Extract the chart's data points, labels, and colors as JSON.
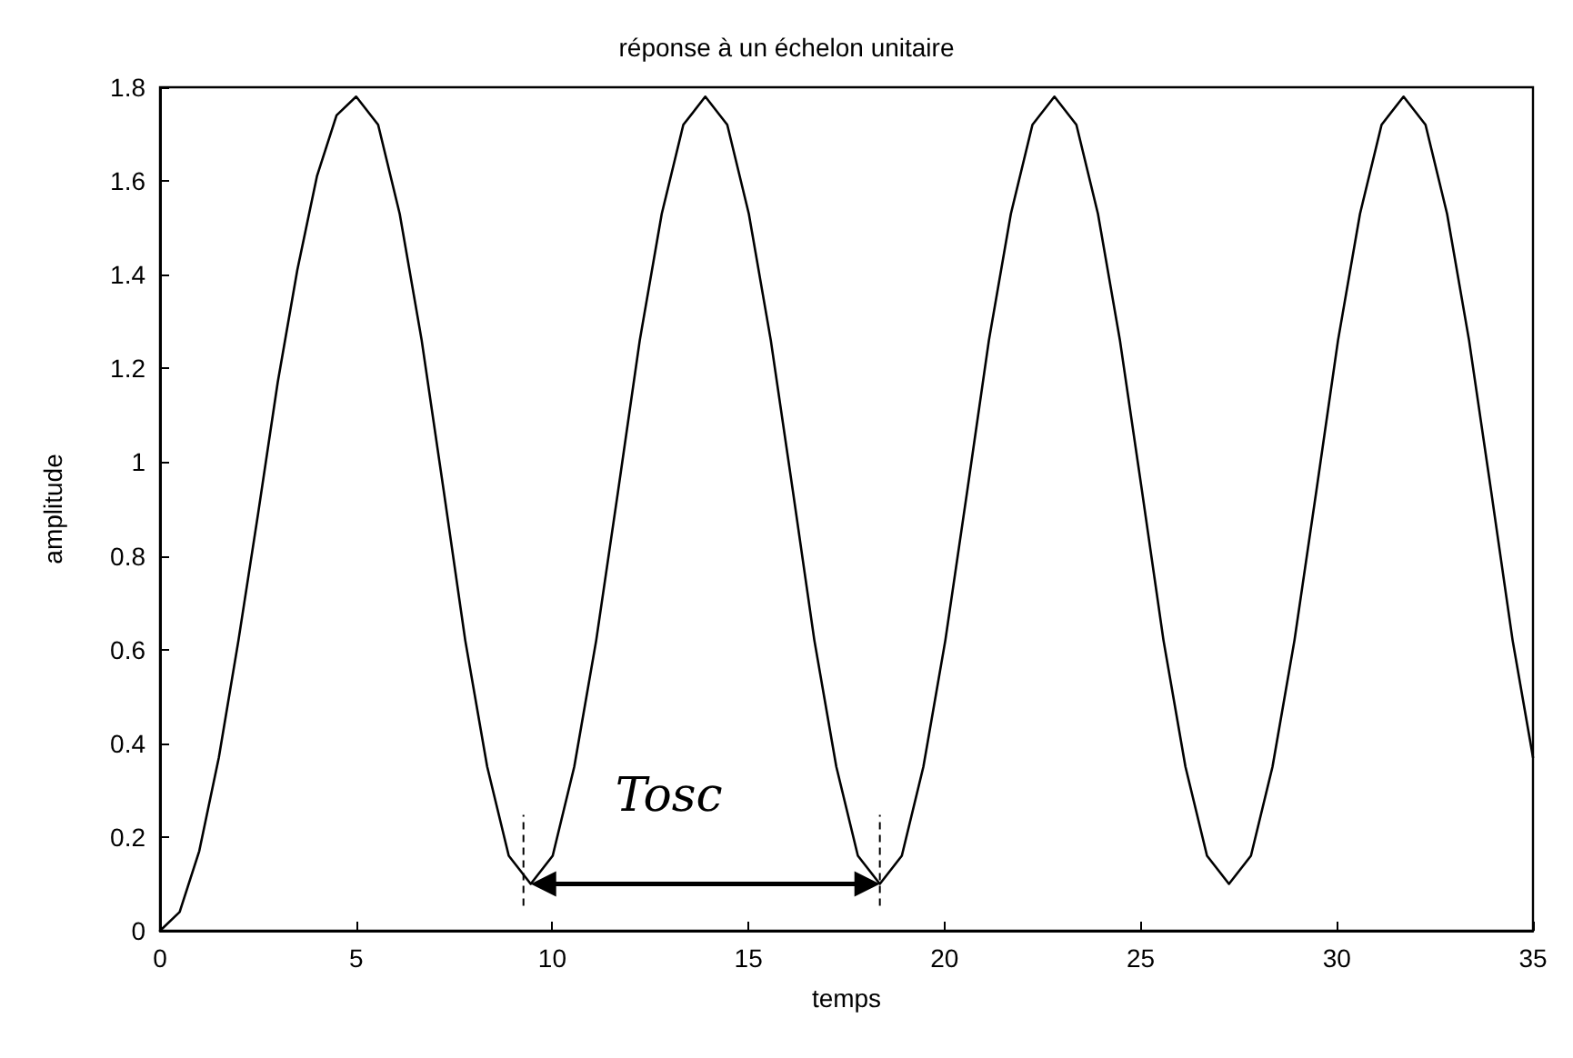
{
  "chart_data": {
    "type": "line",
    "title": "réponse à un échelon unitaire",
    "xlabel": "temps",
    "ylabel": "amplitude",
    "x": [
      0,
      0.5,
      1,
      1.5,
      2,
      2.5,
      3,
      3.5,
      4,
      4.5,
      5,
      5.56,
      6.11,
      6.67,
      7.23,
      7.78,
      8.34,
      8.89,
      9.45,
      10.01,
      10.56,
      11.12,
      11.68,
      12.23,
      12.79,
      13.34,
      13.9,
      14.46,
      15.01,
      15.57,
      16.13,
      16.68,
      17.24,
      17.79,
      18.35,
      18.91,
      19.46,
      20.02,
      20.58,
      21.13,
      21.69,
      22.24,
      22.8,
      23.36,
      23.91,
      24.47,
      25.03,
      25.58,
      26.14,
      26.69,
      27.25,
      27.81,
      28.36,
      28.92,
      29.48,
      30.03,
      30.59,
      31.14,
      31.7,
      32.26,
      32.81,
      33.37,
      33.93,
      34.48,
      35
    ],
    "series": [
      {
        "color": "#000000",
        "values": [
          0,
          0.04,
          0.17,
          0.37,
          0.62,
          0.89,
          1.17,
          1.41,
          1.61,
          1.74,
          1.78,
          1.72,
          1.53,
          1.26,
          0.94,
          0.62,
          0.35,
          0.16,
          0.1,
          0.16,
          0.35,
          0.62,
          0.94,
          1.26,
          1.53,
          1.72,
          1.78,
          1.72,
          1.53,
          1.26,
          0.94,
          0.62,
          0.35,
          0.16,
          0.1,
          0.16,
          0.35,
          0.62,
          0.94,
          1.26,
          1.53,
          1.72,
          1.78,
          1.72,
          1.53,
          1.26,
          0.94,
          0.62,
          0.35,
          0.16,
          0.1,
          0.16,
          0.35,
          0.62,
          0.94,
          1.26,
          1.53,
          1.72,
          1.78,
          1.72,
          1.53,
          1.26,
          0.94,
          0.62,
          0.37
        ]
      }
    ],
    "xlim": [
      0,
      35
    ],
    "xticks": [
      0,
      5,
      10,
      15,
      20,
      25,
      30,
      35
    ],
    "ylim": [
      0,
      1.8
    ],
    "yticks": [
      0,
      0.2,
      0.4,
      0.6,
      0.8,
      1,
      1.2,
      1.4,
      1.6,
      1.8
    ],
    "annotations": [
      "Tosc"
    ],
    "grid": false,
    "marker": "none",
    "line_style": "solid"
  }
}
